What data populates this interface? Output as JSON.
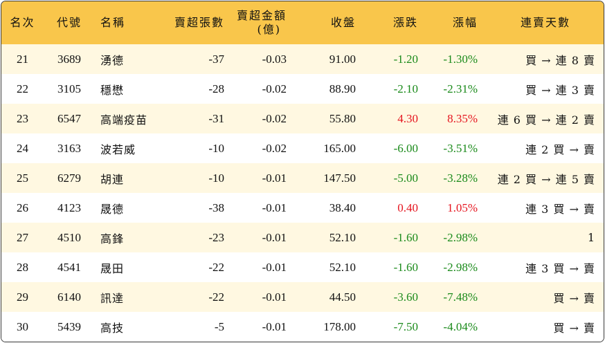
{
  "headers": {
    "rank": "名次",
    "code": "代號",
    "name": "名稱",
    "net_sell_lots": "賣超張數",
    "net_sell_amount_line1": "賣超金額",
    "net_sell_amount_line2": "(億)",
    "close": "收盤",
    "change": "漲跌",
    "pct_change": "漲幅",
    "streak": "連賣天數"
  },
  "colors": {
    "header_bg": "#f9c64b",
    "row_alt_bg": "#fff8e1",
    "up": "#e5141e",
    "down": "#1a8a1a"
  },
  "rows": [
    {
      "rank": "21",
      "code": "3689",
      "name": "湧德",
      "lots": "-37",
      "amount": "-0.03",
      "close": "91.00",
      "change": "-1.20",
      "pct": "-1.30%",
      "streak": "買 → 連 8 賣",
      "dir": "down"
    },
    {
      "rank": "22",
      "code": "3105",
      "name": "穩懋",
      "lots": "-28",
      "amount": "-0.02",
      "close": "88.90",
      "change": "-2.10",
      "pct": "-2.31%",
      "streak": "買 → 連 3 賣",
      "dir": "down"
    },
    {
      "rank": "23",
      "code": "6547",
      "name": "高端疫苗",
      "lots": "-31",
      "amount": "-0.02",
      "close": "55.80",
      "change": "4.30",
      "pct": "8.35%",
      "streak": "連 6 買 → 連 2 賣",
      "dir": "up"
    },
    {
      "rank": "24",
      "code": "3163",
      "name": "波若威",
      "lots": "-10",
      "amount": "-0.02",
      "close": "165.00",
      "change": "-6.00",
      "pct": "-3.51%",
      "streak": "連 2 買 → 賣",
      "dir": "down"
    },
    {
      "rank": "25",
      "code": "6279",
      "name": "胡連",
      "lots": "-10",
      "amount": "-0.01",
      "close": "147.50",
      "change": "-5.00",
      "pct": "-3.28%",
      "streak": "連 2 買 → 連 5 賣",
      "dir": "down"
    },
    {
      "rank": "26",
      "code": "4123",
      "name": "晟德",
      "lots": "-38",
      "amount": "-0.01",
      "close": "38.40",
      "change": "0.40",
      "pct": "1.05%",
      "streak": "連 3 買 → 賣",
      "dir": "up"
    },
    {
      "rank": "27",
      "code": "4510",
      "name": "高鋒",
      "lots": "-23",
      "amount": "-0.01",
      "close": "52.10",
      "change": "-1.60",
      "pct": "-2.98%",
      "streak": "1",
      "dir": "down"
    },
    {
      "rank": "28",
      "code": "4541",
      "name": "晟田",
      "lots": "-22",
      "amount": "-0.01",
      "close": "52.10",
      "change": "-1.60",
      "pct": "-2.98%",
      "streak": "連 3 買 → 賣",
      "dir": "down"
    },
    {
      "rank": "29",
      "code": "6140",
      "name": "訊達",
      "lots": "-22",
      "amount": "-0.01",
      "close": "44.50",
      "change": "-3.60",
      "pct": "-7.48%",
      "streak": "買 → 賣",
      "dir": "down"
    },
    {
      "rank": "30",
      "code": "5439",
      "name": "高技",
      "lots": "-5",
      "amount": "-0.01",
      "close": "178.00",
      "change": "-7.50",
      "pct": "-4.04%",
      "streak": "買 → 賣",
      "dir": "down"
    }
  ]
}
